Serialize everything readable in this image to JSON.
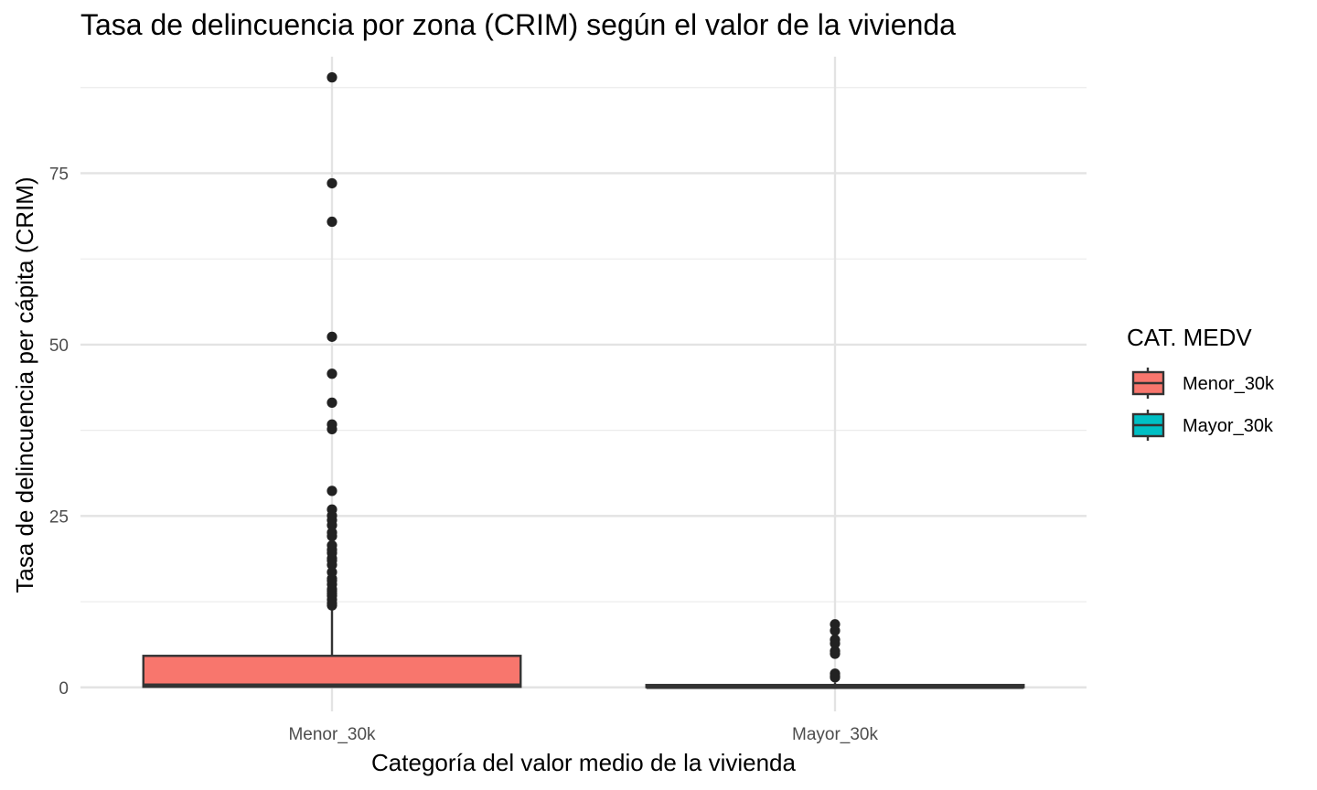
{
  "chart_data": {
    "type": "boxplot",
    "title": "Tasa de delincuencia por zona (CRIM) según el valor de la vivienda",
    "xlabel": "Categoría del valor medio de la vivienda",
    "ylabel": "Tasa de delincuencia per cápita (CRIM)",
    "categories": [
      "Menor_30k",
      "Mayor_30k"
    ],
    "ylim": [
      -3.5,
      92
    ],
    "yticks": [
      0,
      25,
      50,
      75
    ],
    "grid": true,
    "legend": {
      "title": "CAT. MEDV",
      "placement": "right",
      "entries": [
        "Menor_30k",
        "Mayor_30k"
      ]
    },
    "series": [
      {
        "name": "Menor_30k",
        "color": "#F8766D",
        "min": 0.006,
        "q1": 0.08,
        "median": 0.26,
        "q3": 4.6,
        "max": 11.5,
        "outliers": [
          88.98,
          73.53,
          67.92,
          51.14,
          45.75,
          41.53,
          38.35,
          37.66,
          28.66,
          25.95,
          25.05,
          24.39,
          23.65,
          22.6,
          22.05,
          20.72,
          20.08,
          19.61,
          18.81,
          18.5,
          17.87,
          16.81,
          15.87,
          15.58,
          15.02,
          14.33,
          14.05,
          13.68,
          13.36,
          12.8,
          12.25,
          11.95
        ]
      },
      {
        "name": "Mayor_30k",
        "color": "#00BFC4",
        "min": 0.006,
        "q1": 0.03,
        "median": 0.06,
        "q3": 0.35,
        "max": 0.7,
        "outliers": [
          9.2,
          8.27,
          6.96,
          6.39,
          5.3,
          4.9,
          2.0,
          1.62,
          1.46
        ]
      }
    ]
  }
}
